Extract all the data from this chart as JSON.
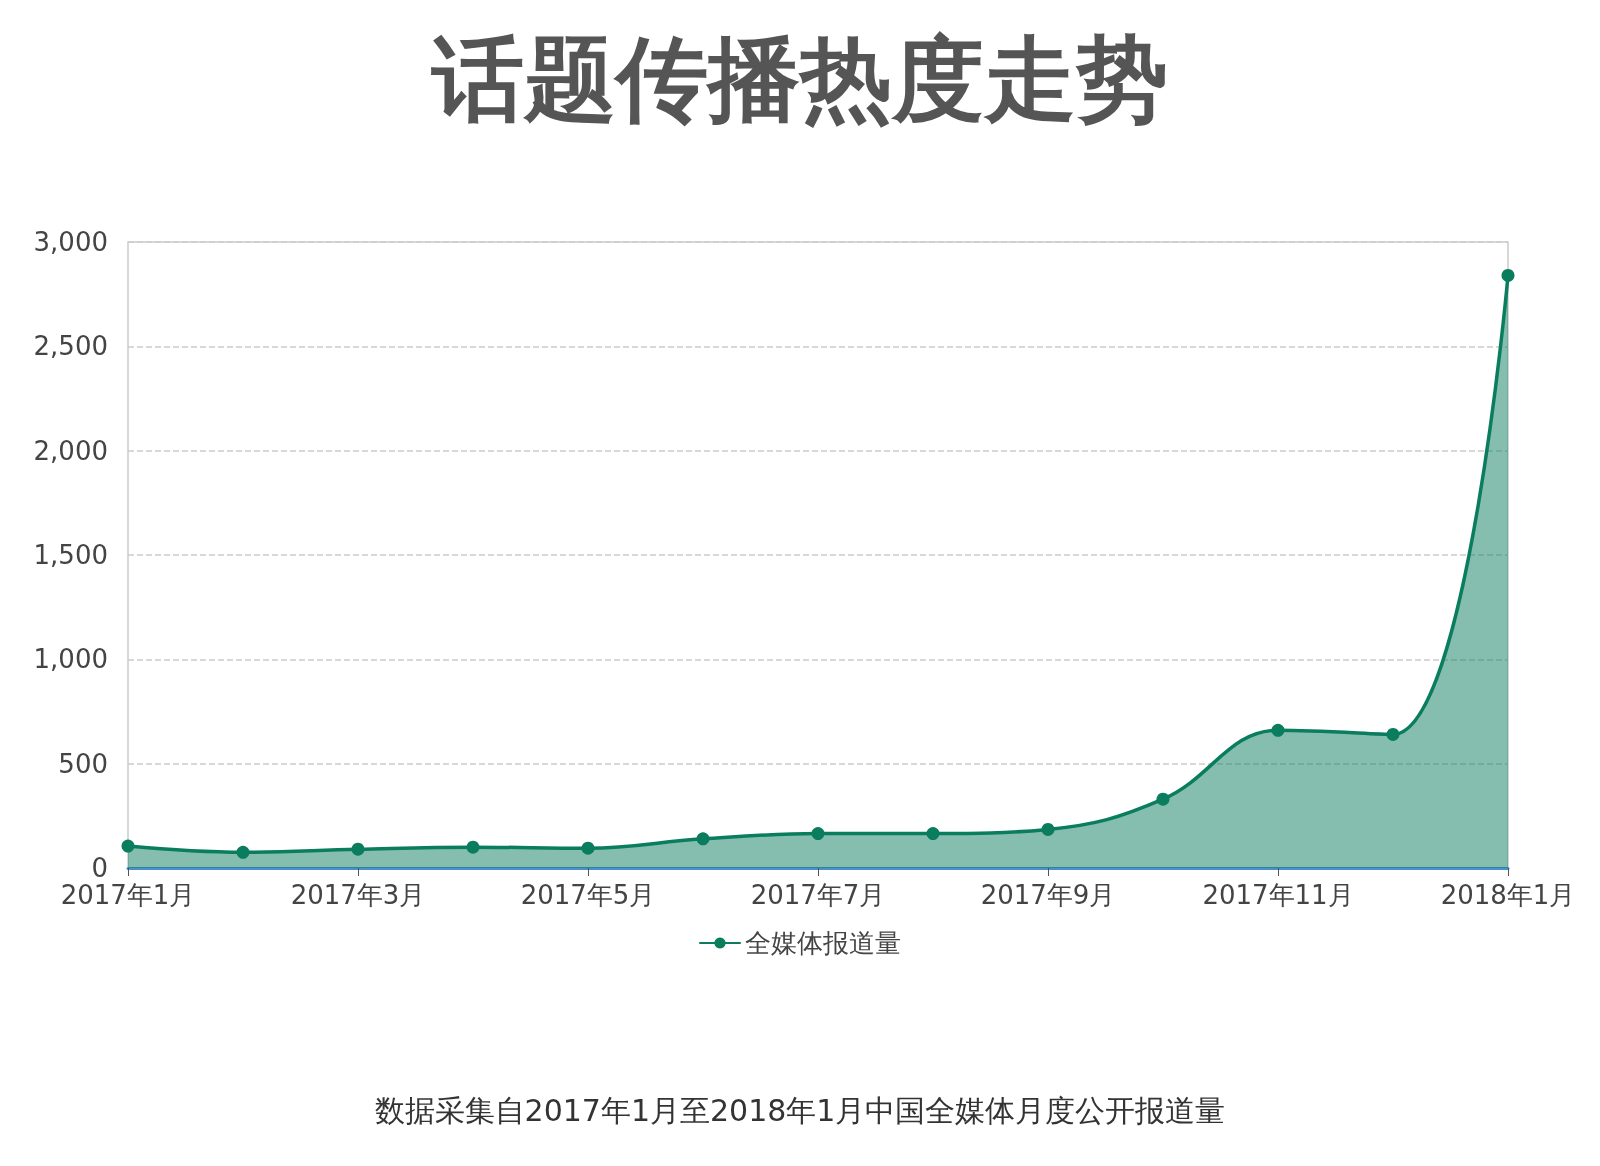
{
  "chart_data": {
    "type": "area",
    "title": "话题传播热度走势",
    "categories": [
      "2017年1月",
      null,
      "2017年3月",
      null,
      "2017年5月",
      null,
      "2017年7月",
      null,
      "2017年9月",
      null,
      "2017年11月",
      null,
      "2018年1月"
    ],
    "series": [
      {
        "name": "全媒体报道量",
        "color": "#0b7d5f",
        "values": [
          105,
          75,
          90,
          100,
          95,
          140,
          165,
          165,
          185,
          330,
          660,
          640,
          2840
        ]
      }
    ],
    "ylim": [
      0,
      3000
    ],
    "yticks": [
      0,
      {
        "value": 500,
        "label": "500"
      },
      {
        "value": 1000,
        "label": "1,000"
      },
      {
        "value": 1500,
        "label": "1,500"
      },
      {
        "value": 2000,
        "label": "2,000"
      },
      {
        "value": 2500,
        "label": "2,500"
      },
      {
        "value": 3000,
        "label": "3,000"
      }
    ],
    "grid": "y",
    "legend": "bottom",
    "marker": "circle",
    "line_style": "solid",
    "annotations": [
      "数据采集自2017年1月至2018年1月中国全媒体月度公开报道量"
    ]
  }
}
